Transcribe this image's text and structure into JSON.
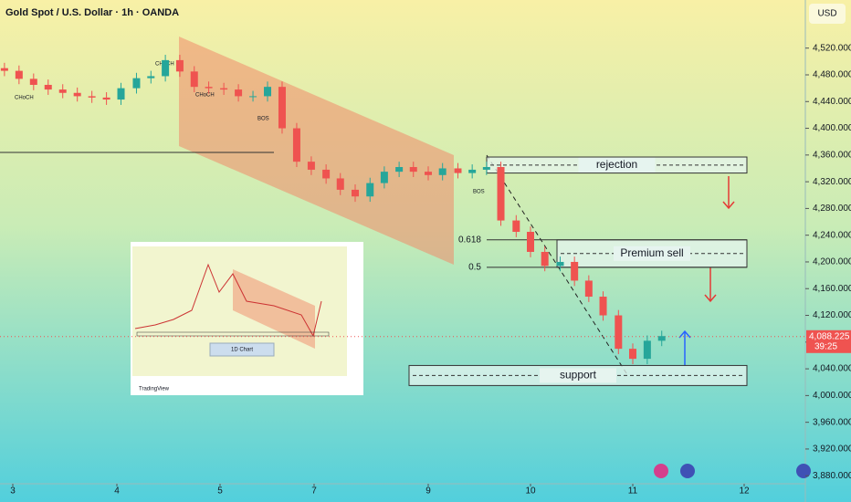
{
  "chart_data": {
    "type": "candlestick",
    "title": "Gold Spot / U.S. Dollar · 1h · OANDA",
    "currency": "USD",
    "up_color": "#26a69a",
    "down_color": "#ef5350",
    "x": [
      2.92,
      3.06,
      3.2,
      3.34,
      3.48,
      3.62,
      3.76,
      3.9,
      4.04,
      4.19,
      4.33,
      4.47,
      4.61,
      4.75,
      4.89,
      5.08,
      5.39,
      5.7,
      6.01,
      6.32,
      6.63,
      6.94,
      7.21,
      7.46,
      7.72,
      7.98,
      8.23,
      8.49,
      8.74,
      9.0,
      9.14,
      9.29,
      9.43,
      9.57,
      9.71,
      9.86,
      10.0,
      10.14,
      10.29,
      10.43,
      10.57,
      10.71,
      10.86,
      11.0,
      11.13,
      11.26
    ],
    "open": [
      4490,
      4486,
      4474,
      4465,
      4458,
      4453,
      4448,
      4446,
      4443,
      4460,
      4475,
      4478,
      4502,
      4485,
      4462,
      4460,
      4458,
      4448,
      4448,
      4462,
      4400,
      4350,
      4338,
      4325,
      4308,
      4298,
      4318,
      4335,
      4342,
      4335,
      4330,
      4340,
      4333,
      4338,
      4342,
      4262,
      4245,
      4215,
      4194,
      4200,
      4172,
      4148,
      4120,
      4070,
      4055,
      4082
    ],
    "high": [
      4498,
      4494,
      4482,
      4473,
      4466,
      4461,
      4456,
      4454,
      4468,
      4483,
      4486,
      4510,
      4510,
      4493,
      4470,
      4468,
      4466,
      4456,
      4470,
      4470,
      4408,
      4358,
      4346,
      4333,
      4316,
      4326,
      4343,
      4350,
      4350,
      4343,
      4348,
      4348,
      4346,
      4350,
      4350,
      4270,
      4253,
      4223,
      4208,
      4208,
      4180,
      4156,
      4128,
      4078,
      4090,
      4097
    ],
    "low": [
      4478,
      4466,
      4457,
      4450,
      4445,
      4440,
      4438,
      4435,
      4435,
      4452,
      4467,
      4470,
      4477,
      4454,
      4452,
      4450,
      4440,
      4440,
      4440,
      4392,
      4342,
      4330,
      4317,
      4300,
      4290,
      4290,
      4310,
      4327,
      4327,
      4322,
      4322,
      4325,
      4325,
      4330,
      4254,
      4237,
      4207,
      4186,
      4186,
      4164,
      4140,
      4112,
      4062,
      4047,
      4047,
      4074
    ],
    "close": [
      4486,
      4474,
      4465,
      4458,
      4453,
      4448,
      4446,
      4443,
      4460,
      4475,
      4478,
      4502,
      4485,
      4462,
      4460,
      4458,
      4448,
      4448,
      4462,
      4400,
      4350,
      4338,
      4325,
      4308,
      4298,
      4318,
      4335,
      4342,
      4335,
      4330,
      4340,
      4333,
      4338,
      4342,
      4262,
      4245,
      4215,
      4194,
      4200,
      4172,
      4148,
      4120,
      4070,
      4055,
      4082,
      4089
    ],
    "ylim": [
      3868,
      4592
    ],
    "yticks": [
      {
        "value": 3880,
        "label": "3,880.000"
      },
      {
        "value": 3920,
        "label": "3,920.000"
      },
      {
        "value": 3960,
        "label": "3,960.000"
      },
      {
        "value": 4000,
        "label": "4,000.000"
      },
      {
        "value": 4040,
        "label": "4,040.000"
      },
      {
        "value": 4080,
        "label": "4,080.000"
      },
      {
        "value": 4120,
        "label": "4,120.000"
      },
      {
        "value": 4160,
        "label": "4,160.000"
      },
      {
        "value": 4200,
        "label": "4,200.000"
      },
      {
        "value": 4240,
        "label": "4,240.000"
      },
      {
        "value": 4280,
        "label": "4,280.000"
      },
      {
        "value": 4320,
        "label": "4,320.000"
      },
      {
        "value": 4360,
        "label": "4,360.000"
      },
      {
        "value": 4400,
        "label": "4,400.000"
      },
      {
        "value": 4440,
        "label": "4,440.000"
      },
      {
        "value": 4480,
        "label": "4,480.000"
      },
      {
        "value": 4520,
        "label": "4,520.000"
      }
    ],
    "xticks": [
      3,
      4,
      5,
      7,
      9,
      10,
      11,
      12
    ],
    "last_price": {
      "value": 4088.225,
      "label": "4,088.225"
    },
    "countdown": "39:25",
    "zones": [
      {
        "label": "rejection",
        "top": 4357,
        "bottom": 4333
      },
      {
        "label": "Premium sell",
        "top": 4233,
        "bottom": 4192
      },
      {
        "label": "support",
        "top": 4045,
        "bottom": 4015
      }
    ],
    "fib_levels": [
      {
        "label": "0.618",
        "value": 4233
      },
      {
        "label": "0.5",
        "value": 4192
      }
    ],
    "annotations": [
      "CHoCH",
      "CHoCH",
      "CHoCH",
      "BOS",
      "BOS"
    ],
    "inset_label": "1D Chart",
    "brand": "TradingView"
  }
}
